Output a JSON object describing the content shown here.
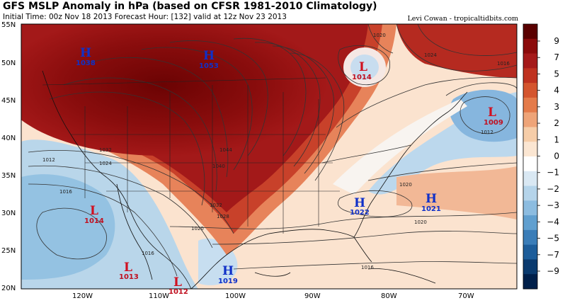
{
  "header": {
    "title": "GFS MSLP Anomaly in hPa (based on CFSR 1981-2010 Climatology)",
    "subtitle": "Initial Time: 00z Nov 18 2013 Forecast Hour: [132] valid at 12z Nov 23 2013",
    "credit": "Levi Cowan - tropicaltidbits.com"
  },
  "axes": {
    "lat_labels": [
      "55N",
      "50N",
      "45N",
      "40N",
      "35N",
      "30N",
      "25N",
      "20N"
    ],
    "lon_labels": [
      "120W",
      "110W",
      "100W",
      "90W",
      "80W",
      "70W"
    ]
  },
  "colorbar": {
    "ticks": [
      "9",
      "7",
      "5",
      "4",
      "3",
      "2",
      "1",
      "0",
      "−1",
      "−2",
      "−3",
      "−4",
      "−5",
      "−7",
      "−9"
    ],
    "colors": [
      "#5a0000",
      "#8b0b0b",
      "#a51a1a",
      "#bf3220",
      "#d4552e",
      "#e47b4a",
      "#eea478",
      "#f6cda8",
      "#fbe6d2",
      "#ffffff",
      "#d9e8f3",
      "#b5d4ea",
      "#8cbce0",
      "#609fcf",
      "#3a7db8",
      "#1d5d9a",
      "#0a3a6e",
      "#001f4a"
    ]
  },
  "systems": [
    {
      "type": "H",
      "pressure": "1038",
      "label_name": "high-1038"
    },
    {
      "type": "H",
      "pressure": "1053",
      "label_name": "high-1053"
    },
    {
      "type": "L",
      "pressure": "1014",
      "label_name": "low-1014-north"
    },
    {
      "type": "L",
      "pressure": "1009",
      "label_name": "low-1009"
    },
    {
      "type": "H",
      "pressure": "1022",
      "label_name": "high-1022"
    },
    {
      "type": "H",
      "pressure": "1021",
      "label_name": "high-1021"
    },
    {
      "type": "L",
      "pressure": "1014",
      "label_name": "low-1014-baja"
    },
    {
      "type": "L",
      "pressure": "1013",
      "label_name": "low-1013"
    },
    {
      "type": "L",
      "pressure": "1012",
      "label_name": "low-1012"
    },
    {
      "type": "H",
      "pressure": "1019",
      "label_name": "high-1019"
    }
  ],
  "isobar_labels": [
    "1020",
    "1024",
    "1016",
    "1012",
    "1032",
    "1024",
    "1016",
    "1044",
    "1040",
    "1032",
    "1028",
    "1020",
    "1020",
    "1020",
    "1016",
    "1012",
    "1016"
  ]
}
